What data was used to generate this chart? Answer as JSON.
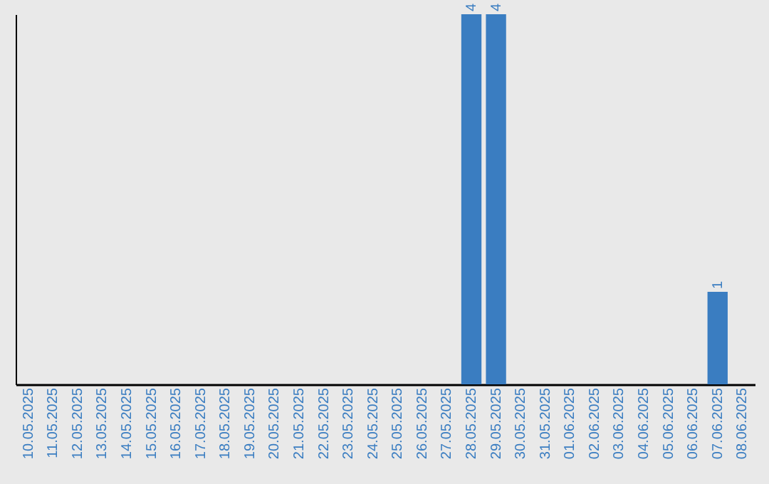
{
  "chart_data": {
    "type": "bar",
    "categories": [
      "10.05.2025",
      "11.05.2025",
      "12.05.2025",
      "13.05.2025",
      "14.05.2025",
      "15.05.2025",
      "16.05.2025",
      "17.05.2025",
      "18.05.2025",
      "19.05.2025",
      "20.05.2025",
      "21.05.2025",
      "22.05.2025",
      "23.05.2025",
      "24.05.2025",
      "25.05.2025",
      "26.05.2025",
      "27.05.2025",
      "28.05.2025",
      "29.05.2025",
      "30.05.2025",
      "31.05.2025",
      "01.06.2025",
      "02.06.2025",
      "03.06.2025",
      "04.06.2025",
      "05.06.2025",
      "06.06.2025",
      "07.06.2025",
      "08.06.2025"
    ],
    "values": [
      null,
      null,
      null,
      null,
      null,
      null,
      null,
      null,
      null,
      null,
      null,
      null,
      null,
      null,
      null,
      null,
      null,
      null,
      4,
      4,
      null,
      null,
      null,
      null,
      null,
      null,
      null,
      null,
      1,
      null
    ],
    "data_labels": true,
    "color": "#3a7dc1",
    "tick_labels": "x"
  }
}
